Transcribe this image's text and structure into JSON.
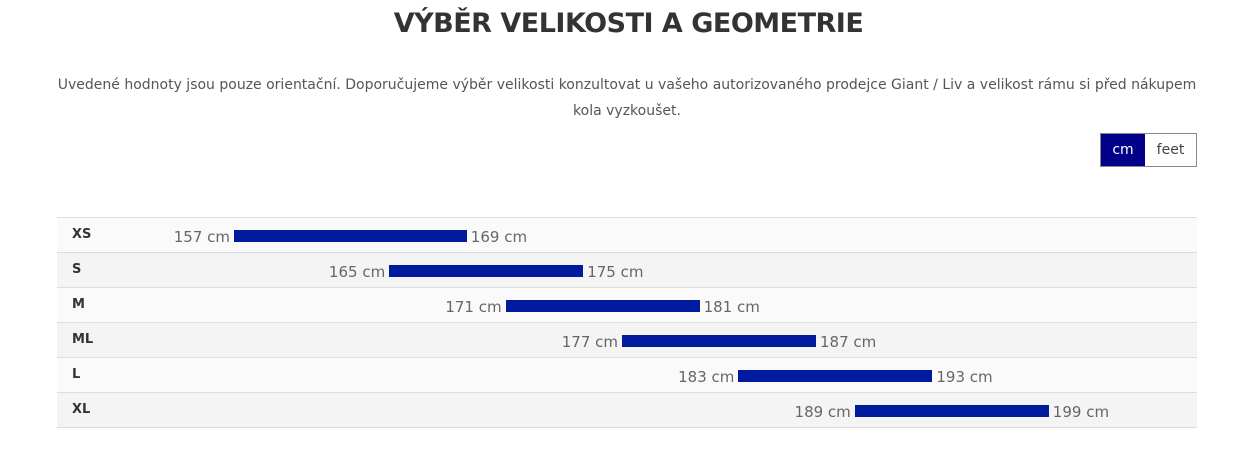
{
  "title": "VÝBĚR VELIKOSTI A GEOMETRIE",
  "intro": "Uvedené hodnoty jsou pouze orientační. Doporučujeme výběr velikosti konzultovat u vašeho autorizovaného prodejce Giant / Liv a velikost rámu si před nákupem kola vyzkoušet.",
  "units": {
    "options": [
      "cm",
      "feet"
    ],
    "selected": "cm"
  },
  "colors": {
    "bar": "#001b9e",
    "active_toggle": "#000088"
  },
  "sizes": [
    {
      "size": "XS",
      "min": 157,
      "max": 169,
      "min_label": "157 cm",
      "max_label": "169 cm"
    },
    {
      "size": "S",
      "min": 165,
      "max": 175,
      "min_label": "165 cm",
      "max_label": "175 cm"
    },
    {
      "size": "M",
      "min": 171,
      "max": 181,
      "min_label": "171 cm",
      "max_label": "181 cm"
    },
    {
      "size": "ML",
      "min": 177,
      "max": 187,
      "min_label": "177 cm",
      "max_label": "187 cm"
    },
    {
      "size": "L",
      "min": 183,
      "max": 193,
      "min_label": "183 cm",
      "max_label": "193 cm"
    },
    {
      "size": "XL",
      "min": 189,
      "max": 199,
      "min_label": "189 cm",
      "max_label": "199 cm"
    }
  ]
}
